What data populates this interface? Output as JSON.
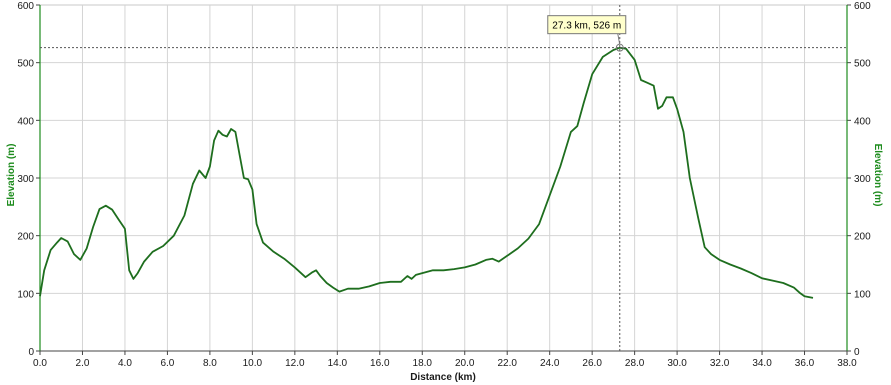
{
  "chart_data": {
    "type": "line",
    "xlabel": "Distance (km)",
    "ylabel": "Elevation (m)",
    "y2label": "Elevation (m)",
    "xlim": [
      0,
      38
    ],
    "ylim": [
      0,
      600
    ],
    "x_ticks": [
      "0.0",
      "2.0",
      "4.0",
      "6.0",
      "8.0",
      "10.0",
      "12.0",
      "14.0",
      "16.0",
      "18.0",
      "20.0",
      "22.0",
      "24.0",
      "26.0",
      "28.0",
      "30.0",
      "32.0",
      "34.0",
      "36.0",
      "38.0"
    ],
    "y_ticks": [
      "0",
      "100",
      "200",
      "300",
      "400",
      "500",
      "600"
    ],
    "grid": true,
    "series": [
      {
        "color": "#1e6e1e",
        "x": [
          0,
          0.2,
          0.5,
          0.8,
          1.0,
          1.3,
          1.6,
          1.9,
          2.2,
          2.5,
          2.8,
          3.1,
          3.4,
          3.7,
          4.0,
          4.2,
          4.4,
          4.6,
          4.9,
          5.3,
          5.8,
          6.3,
          6.8,
          7.2,
          7.5,
          7.8,
          8.0,
          8.2,
          8.4,
          8.6,
          8.8,
          9.0,
          9.2,
          9.4,
          9.6,
          9.8,
          10.0,
          10.2,
          10.5,
          11.0,
          11.5,
          12.0,
          12.5,
          12.8,
          13.0,
          13.2,
          13.5,
          13.8,
          14.1,
          14.5,
          15.0,
          15.5,
          16.0,
          16.5,
          17.0,
          17.3,
          17.5,
          17.7,
          18.0,
          18.5,
          19.0,
          19.5,
          20.0,
          20.5,
          21.0,
          21.3,
          21.6,
          22.0,
          22.5,
          23.0,
          23.5,
          24.0,
          24.5,
          25.0,
          25.3,
          25.6,
          26.0,
          26.5,
          27.0,
          27.3,
          27.6,
          28.0,
          28.3,
          28.6,
          28.9,
          29.1,
          29.3,
          29.5,
          29.8,
          30.0,
          30.3,
          30.6,
          31.0,
          31.3,
          31.6,
          32.0,
          32.5,
          33.0,
          33.5,
          34.0,
          34.5,
          35.0,
          35.5,
          35.8,
          36.0,
          36.4
        ],
        "values": [
          95,
          140,
          175,
          188,
          196,
          190,
          168,
          158,
          178,
          215,
          246,
          252,
          245,
          228,
          212,
          140,
          125,
          135,
          155,
          172,
          182,
          200,
          235,
          290,
          313,
          300,
          320,
          365,
          382,
          375,
          372,
          385,
          380,
          340,
          300,
          298,
          280,
          220,
          188,
          172,
          160,
          145,
          128,
          136,
          140,
          130,
          118,
          110,
          103,
          108,
          108,
          112,
          118,
          120,
          120,
          130,
          125,
          132,
          135,
          140,
          140,
          142,
          145,
          150,
          158,
          160,
          155,
          165,
          178,
          195,
          220,
          270,
          320,
          380,
          390,
          430,
          480,
          510,
          522,
          526,
          524,
          505,
          470,
          465,
          460,
          420,
          425,
          440,
          440,
          420,
          380,
          300,
          230,
          180,
          168,
          158,
          150,
          143,
          135,
          126,
          122,
          118,
          110,
          100,
          95,
          92
        ]
      }
    ],
    "annotation": {
      "x": 27.3,
      "y": 526,
      "label": "27.3 km, 526 m"
    }
  }
}
